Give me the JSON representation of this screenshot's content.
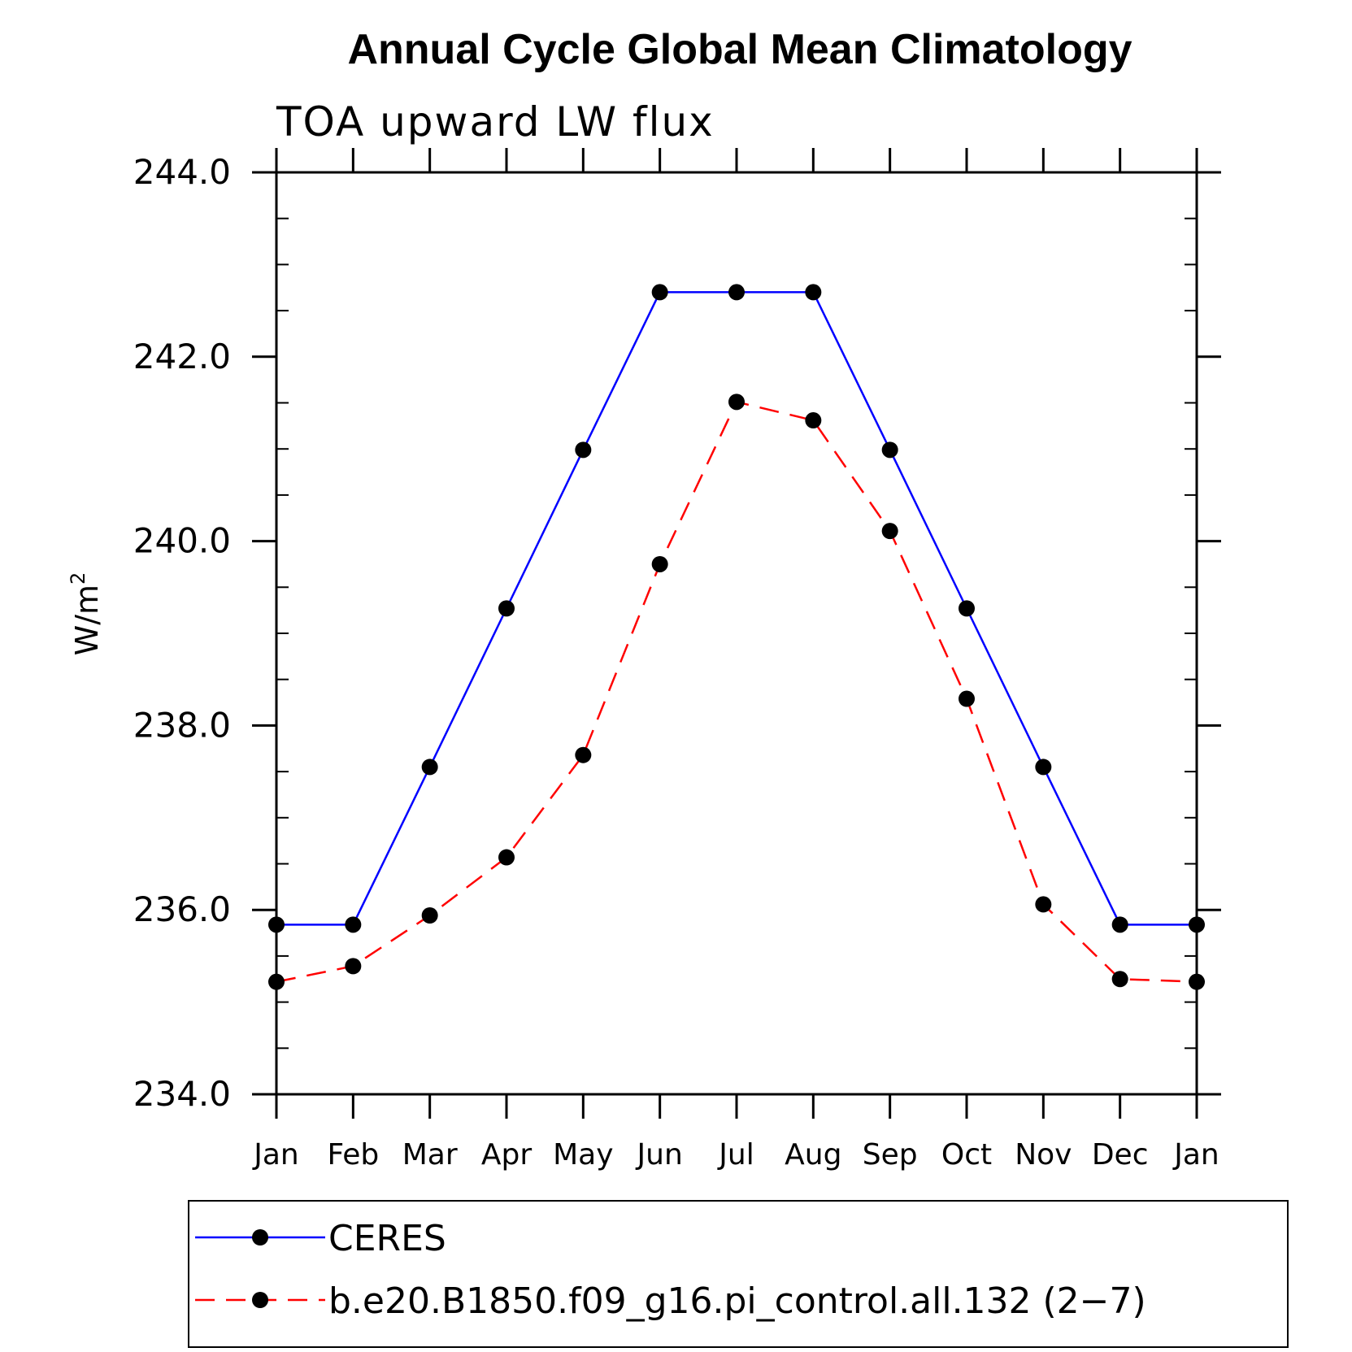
{
  "chart_data": {
    "type": "line",
    "title": "Annual Cycle Global Mean Climatology",
    "subtitle": "TOA upward LW flux",
    "ylabel_base": "W/m",
    "ylabel_sup": "2",
    "ylim": [
      234.0,
      244.0
    ],
    "yticks": [
      "234.0",
      "236.0",
      "238.0",
      "240.0",
      "242.0",
      "244.0"
    ],
    "ytick_values": [
      234,
      236,
      238,
      240,
      242,
      244
    ],
    "categories": [
      "Jan",
      "Feb",
      "Mar",
      "Apr",
      "May",
      "Jun",
      "Jul",
      "Aug",
      "Sep",
      "Oct",
      "Nov",
      "Dec",
      "Jan"
    ],
    "series": [
      {
        "name": "CERES",
        "color": "#0000ff",
        "dashed": false,
        "values": [
          235.84,
          235.84,
          237.55,
          239.27,
          240.99,
          242.7,
          242.7,
          242.7,
          240.99,
          239.27,
          237.55,
          235.84,
          235.84
        ]
      },
      {
        "name": "b.e20.B1850.f09_g16.pi_control.all.132 (2−7)",
        "color": "#ff0000",
        "dashed": true,
        "values": [
          235.22,
          235.39,
          235.94,
          236.57,
          237.68,
          239.75,
          241.51,
          241.31,
          240.11,
          238.29,
          236.06,
          235.25,
          235.22
        ]
      }
    ],
    "legend_position": "bottom"
  }
}
